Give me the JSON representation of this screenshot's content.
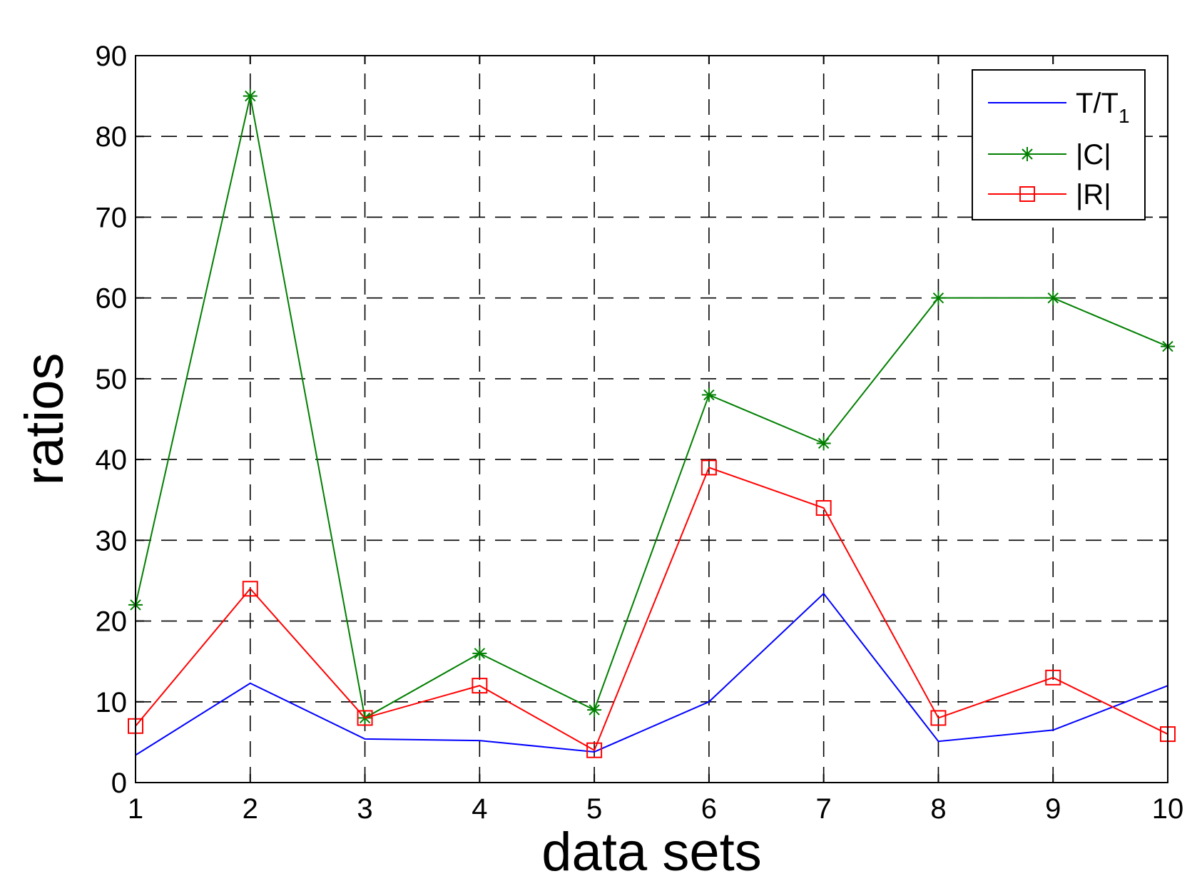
{
  "chart_data": {
    "type": "line",
    "title": "",
    "xlabel": "data sets",
    "ylabel": "ratios",
    "x": [
      1,
      2,
      3,
      4,
      5,
      6,
      7,
      8,
      9,
      10
    ],
    "xlim": [
      1,
      10
    ],
    "ylim": [
      0,
      90
    ],
    "xticks": [
      "1",
      "2",
      "3",
      "4",
      "5",
      "6",
      "7",
      "8",
      "9",
      "10"
    ],
    "yticks": [
      "0",
      "10",
      "20",
      "30",
      "40",
      "50",
      "60",
      "70",
      "80",
      "90"
    ],
    "grid": true,
    "grid_style": "dashed",
    "legend_position": "top-right",
    "series": [
      {
        "key": "t",
        "name": "T/T",
        "name_subscript": "1",
        "color": "#0000ff",
        "marker": "none",
        "values": [
          3.4,
          12.3,
          5.4,
          5.2,
          3.8,
          10.0,
          23.4,
          5.1,
          6.5,
          12.0
        ]
      },
      {
        "key": "c",
        "name": "|C|",
        "color": "#007f00",
        "marker": "asterisk",
        "values": [
          22,
          85,
          8,
          16,
          9,
          48,
          42,
          60,
          60,
          54
        ]
      },
      {
        "key": "r",
        "name": "|R|",
        "color": "#ff0000",
        "marker": "square",
        "values": [
          7,
          24,
          8,
          12,
          4,
          39,
          34,
          8,
          13,
          6
        ]
      }
    ]
  }
}
